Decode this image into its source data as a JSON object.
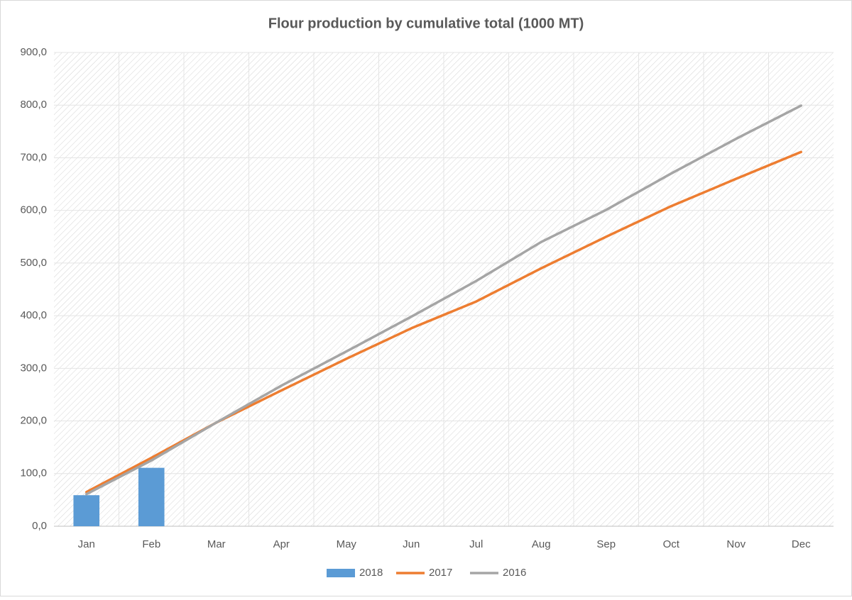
{
  "chart_data": {
    "type": "combo",
    "title": "Flour production by cumulative total (1000 MT)",
    "categories": [
      "Jan",
      "Feb",
      "Mar",
      "Apr",
      "May",
      "Jun",
      "Jul",
      "Aug",
      "Sep",
      "Oct",
      "Nov",
      "Dec"
    ],
    "series": [
      {
        "name": "2018",
        "type": "bar",
        "color": "#5b9bd5",
        "values": [
          59,
          111,
          null,
          null,
          null,
          null,
          null,
          null,
          null,
          null,
          null,
          null
        ]
      },
      {
        "name": "2017",
        "type": "line",
        "color": "#ed7d31",
        "values": [
          65,
          130,
          197,
          258,
          318,
          376,
          427,
          490,
          550,
          608,
          660,
          711
        ]
      },
      {
        "name": "2016",
        "type": "line",
        "color": "#a5a5a5",
        "values": [
          61,
          125,
          197,
          267,
          332,
          398,
          466,
          540,
          601,
          670,
          736,
          799
        ]
      }
    ],
    "ylim": [
      0,
      900
    ],
    "yticks": [
      {
        "value": 0,
        "label": "0,0"
      },
      {
        "value": 100,
        "label": "100,0"
      },
      {
        "value": 200,
        "label": "200,0"
      },
      {
        "value": 300,
        "label": "300,0"
      },
      {
        "value": 400,
        "label": "400,0"
      },
      {
        "value": 500,
        "label": "500,0"
      },
      {
        "value": 600,
        "label": "600,0"
      },
      {
        "value": 700,
        "label": "700,0"
      },
      {
        "value": 800,
        "label": "800,0"
      },
      {
        "value": 900,
        "label": "900,0"
      }
    ],
    "grid": true,
    "legend": "bottom"
  }
}
